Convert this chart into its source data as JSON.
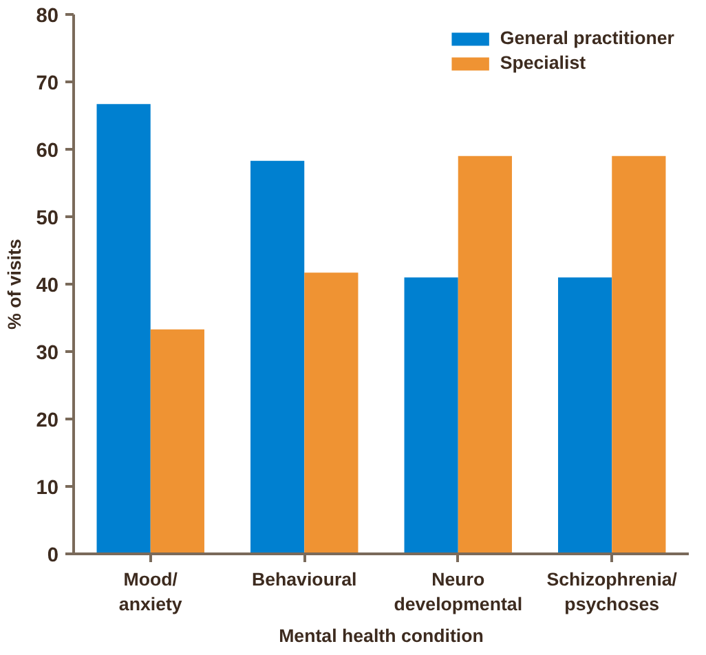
{
  "chart_data": {
    "type": "bar",
    "xlabel": "Mental health condition",
    "ylabel": "% of visits",
    "categories": [
      "Mood/\nanxiety",
      "Behavioural",
      "Neuro\ndevelopmental",
      "Schizophrenia/\npsychoses"
    ],
    "series": [
      {
        "name": "General practitioner",
        "color": "#0080d0",
        "values": [
          66.7,
          58.3,
          41,
          41
        ]
      },
      {
        "name": "Specialist",
        "color": "#ef9333",
        "values": [
          33.3,
          41.7,
          59,
          59
        ]
      }
    ],
    "ylim": [
      0,
      80
    ],
    "yticks": [
      0,
      10,
      20,
      30,
      40,
      50,
      60,
      70,
      80
    ],
    "grid": false,
    "legend": "top right"
  }
}
